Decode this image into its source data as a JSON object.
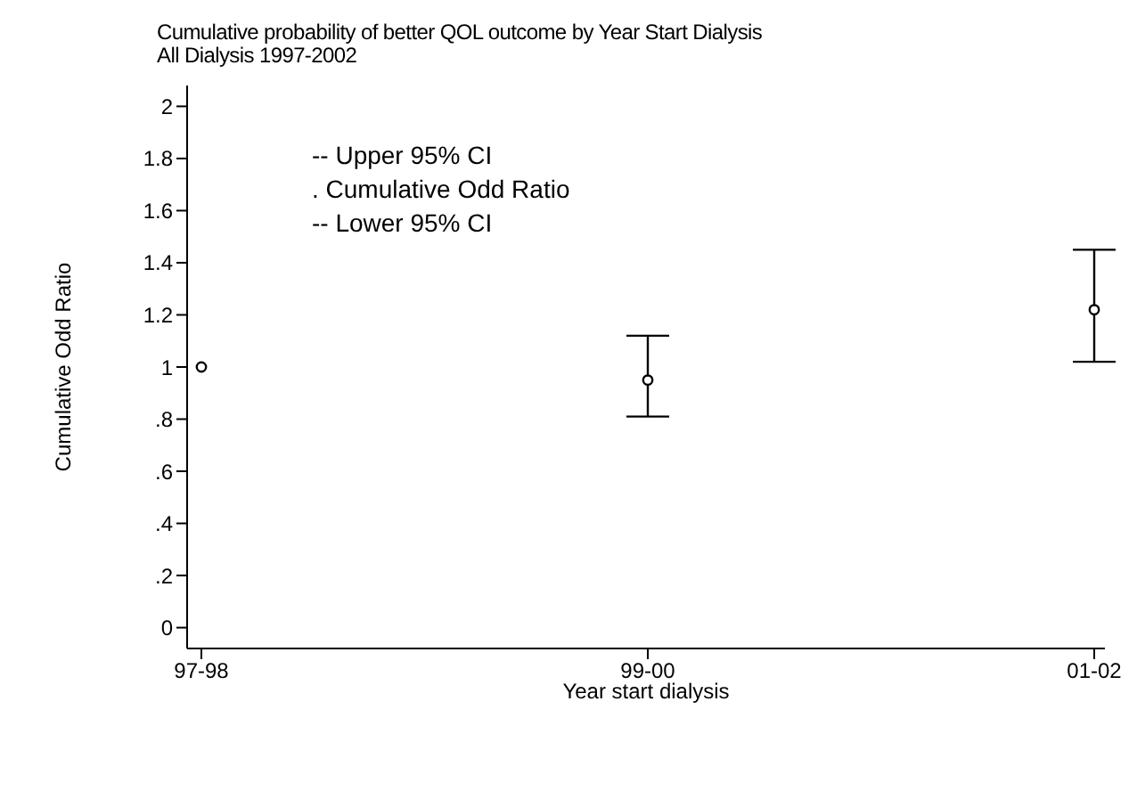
{
  "chart_data": {
    "type": "scatter",
    "title": "Cumulative probability of better QOL outcome by Year Start Dialysis",
    "subtitle": "All Dialysis 1997-2002",
    "xlabel": "Year start dialysis",
    "ylabel": "Cumulative Odd Ratio",
    "categories": [
      "97-98",
      "99-00",
      "01-02"
    ],
    "values": [
      1,
      0.95,
      1.22
    ],
    "errors": [
      null,
      [
        0.81,
        1.12
      ],
      [
        1.02,
        1.45
      ]
    ],
    "color": "#000000",
    "marker": "circle",
    "grid": false,
    "legend": false,
    "ylim": [
      -0.08,
      2.08
    ],
    "yticks": [
      0,
      {
        "value": 0.2,
        "label": ".2"
      },
      {
        "value": 0.4,
        "label": ".4"
      },
      {
        "value": 0.6,
        "label": ".6"
      },
      {
        "value": 0.8,
        "label": ".8"
      },
      1,
      1.2,
      1.4,
      1.6,
      1.8,
      2
    ],
    "annotations": [
      "-- Upper 95% CI",
      ".  Cumulative Odd Ratio",
      "-- Lower 95% CI"
    ]
  }
}
